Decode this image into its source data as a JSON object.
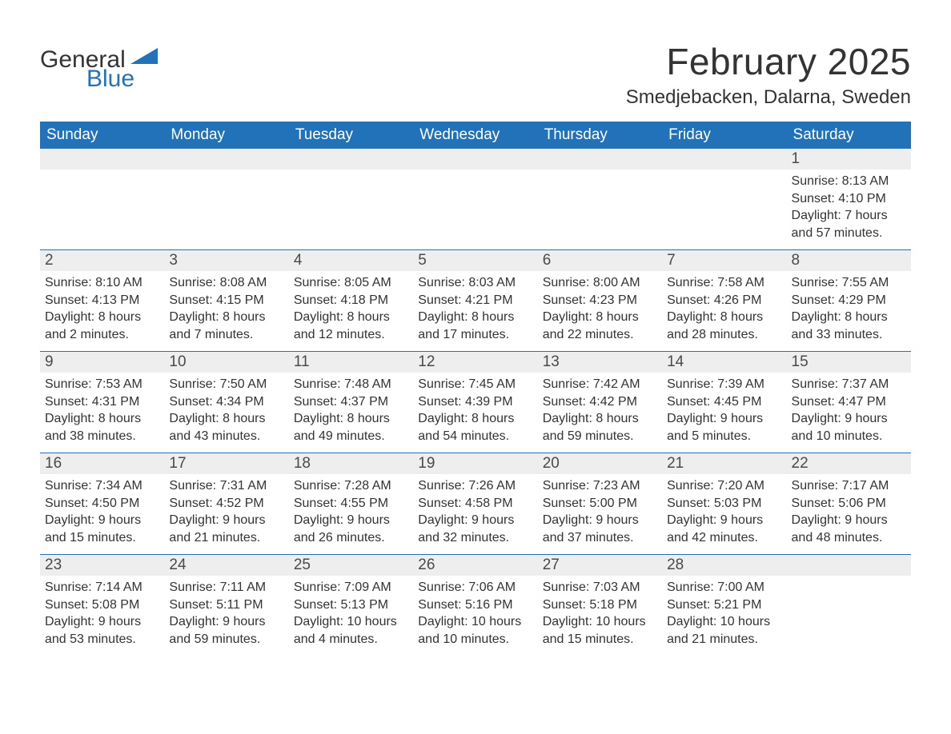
{
  "logo": {
    "text1": "General",
    "text2": "Blue",
    "accent_color": "#2172b8"
  },
  "title": "February 2025",
  "location": "Smedjebacken, Dalarna, Sweden",
  "colors": {
    "header_bg": "#2172b8",
    "header_text": "#ffffff",
    "daynum_bg": "#eeeeee",
    "week_border": "#2172b8",
    "body_text": "#333333"
  },
  "weekdays": [
    "Sunday",
    "Monday",
    "Tuesday",
    "Wednesday",
    "Thursday",
    "Friday",
    "Saturday"
  ],
  "weeks": [
    [
      {
        "num": "",
        "sunrise": "",
        "sunset": "",
        "daylight": ""
      },
      {
        "num": "",
        "sunrise": "",
        "sunset": "",
        "daylight": ""
      },
      {
        "num": "",
        "sunrise": "",
        "sunset": "",
        "daylight": ""
      },
      {
        "num": "",
        "sunrise": "",
        "sunset": "",
        "daylight": ""
      },
      {
        "num": "",
        "sunrise": "",
        "sunset": "",
        "daylight": ""
      },
      {
        "num": "",
        "sunrise": "",
        "sunset": "",
        "daylight": ""
      },
      {
        "num": "1",
        "sunrise": "Sunrise: 8:13 AM",
        "sunset": "Sunset: 4:10 PM",
        "daylight": "Daylight: 7 hours and 57 minutes."
      }
    ],
    [
      {
        "num": "2",
        "sunrise": "Sunrise: 8:10 AM",
        "sunset": "Sunset: 4:13 PM",
        "daylight": "Daylight: 8 hours and 2 minutes."
      },
      {
        "num": "3",
        "sunrise": "Sunrise: 8:08 AM",
        "sunset": "Sunset: 4:15 PM",
        "daylight": "Daylight: 8 hours and 7 minutes."
      },
      {
        "num": "4",
        "sunrise": "Sunrise: 8:05 AM",
        "sunset": "Sunset: 4:18 PM",
        "daylight": "Daylight: 8 hours and 12 minutes."
      },
      {
        "num": "5",
        "sunrise": "Sunrise: 8:03 AM",
        "sunset": "Sunset: 4:21 PM",
        "daylight": "Daylight: 8 hours and 17 minutes."
      },
      {
        "num": "6",
        "sunrise": "Sunrise: 8:00 AM",
        "sunset": "Sunset: 4:23 PM",
        "daylight": "Daylight: 8 hours and 22 minutes."
      },
      {
        "num": "7",
        "sunrise": "Sunrise: 7:58 AM",
        "sunset": "Sunset: 4:26 PM",
        "daylight": "Daylight: 8 hours and 28 minutes."
      },
      {
        "num": "8",
        "sunrise": "Sunrise: 7:55 AM",
        "sunset": "Sunset: 4:29 PM",
        "daylight": "Daylight: 8 hours and 33 minutes."
      }
    ],
    [
      {
        "num": "9",
        "sunrise": "Sunrise: 7:53 AM",
        "sunset": "Sunset: 4:31 PM",
        "daylight": "Daylight: 8 hours and 38 minutes."
      },
      {
        "num": "10",
        "sunrise": "Sunrise: 7:50 AM",
        "sunset": "Sunset: 4:34 PM",
        "daylight": "Daylight: 8 hours and 43 minutes."
      },
      {
        "num": "11",
        "sunrise": "Sunrise: 7:48 AM",
        "sunset": "Sunset: 4:37 PM",
        "daylight": "Daylight: 8 hours and 49 minutes."
      },
      {
        "num": "12",
        "sunrise": "Sunrise: 7:45 AM",
        "sunset": "Sunset: 4:39 PM",
        "daylight": "Daylight: 8 hours and 54 minutes."
      },
      {
        "num": "13",
        "sunrise": "Sunrise: 7:42 AM",
        "sunset": "Sunset: 4:42 PM",
        "daylight": "Daylight: 8 hours and 59 minutes."
      },
      {
        "num": "14",
        "sunrise": "Sunrise: 7:39 AM",
        "sunset": "Sunset: 4:45 PM",
        "daylight": "Daylight: 9 hours and 5 minutes."
      },
      {
        "num": "15",
        "sunrise": "Sunrise: 7:37 AM",
        "sunset": "Sunset: 4:47 PM",
        "daylight": "Daylight: 9 hours and 10 minutes."
      }
    ],
    [
      {
        "num": "16",
        "sunrise": "Sunrise: 7:34 AM",
        "sunset": "Sunset: 4:50 PM",
        "daylight": "Daylight: 9 hours and 15 minutes."
      },
      {
        "num": "17",
        "sunrise": "Sunrise: 7:31 AM",
        "sunset": "Sunset: 4:52 PM",
        "daylight": "Daylight: 9 hours and 21 minutes."
      },
      {
        "num": "18",
        "sunrise": "Sunrise: 7:28 AM",
        "sunset": "Sunset: 4:55 PM",
        "daylight": "Daylight: 9 hours and 26 minutes."
      },
      {
        "num": "19",
        "sunrise": "Sunrise: 7:26 AM",
        "sunset": "Sunset: 4:58 PM",
        "daylight": "Daylight: 9 hours and 32 minutes."
      },
      {
        "num": "20",
        "sunrise": "Sunrise: 7:23 AM",
        "sunset": "Sunset: 5:00 PM",
        "daylight": "Daylight: 9 hours and 37 minutes."
      },
      {
        "num": "21",
        "sunrise": "Sunrise: 7:20 AM",
        "sunset": "Sunset: 5:03 PM",
        "daylight": "Daylight: 9 hours and 42 minutes."
      },
      {
        "num": "22",
        "sunrise": "Sunrise: 7:17 AM",
        "sunset": "Sunset: 5:06 PM",
        "daylight": "Daylight: 9 hours and 48 minutes."
      }
    ],
    [
      {
        "num": "23",
        "sunrise": "Sunrise: 7:14 AM",
        "sunset": "Sunset: 5:08 PM",
        "daylight": "Daylight: 9 hours and 53 minutes."
      },
      {
        "num": "24",
        "sunrise": "Sunrise: 7:11 AM",
        "sunset": "Sunset: 5:11 PM",
        "daylight": "Daylight: 9 hours and 59 minutes."
      },
      {
        "num": "25",
        "sunrise": "Sunrise: 7:09 AM",
        "sunset": "Sunset: 5:13 PM",
        "daylight": "Daylight: 10 hours and 4 minutes."
      },
      {
        "num": "26",
        "sunrise": "Sunrise: 7:06 AM",
        "sunset": "Sunset: 5:16 PM",
        "daylight": "Daylight: 10 hours and 10 minutes."
      },
      {
        "num": "27",
        "sunrise": "Sunrise: 7:03 AM",
        "sunset": "Sunset: 5:18 PM",
        "daylight": "Daylight: 10 hours and 15 minutes."
      },
      {
        "num": "28",
        "sunrise": "Sunrise: 7:00 AM",
        "sunset": "Sunset: 5:21 PM",
        "daylight": "Daylight: 10 hours and 21 minutes."
      },
      {
        "num": "",
        "sunrise": "",
        "sunset": "",
        "daylight": ""
      }
    ]
  ]
}
